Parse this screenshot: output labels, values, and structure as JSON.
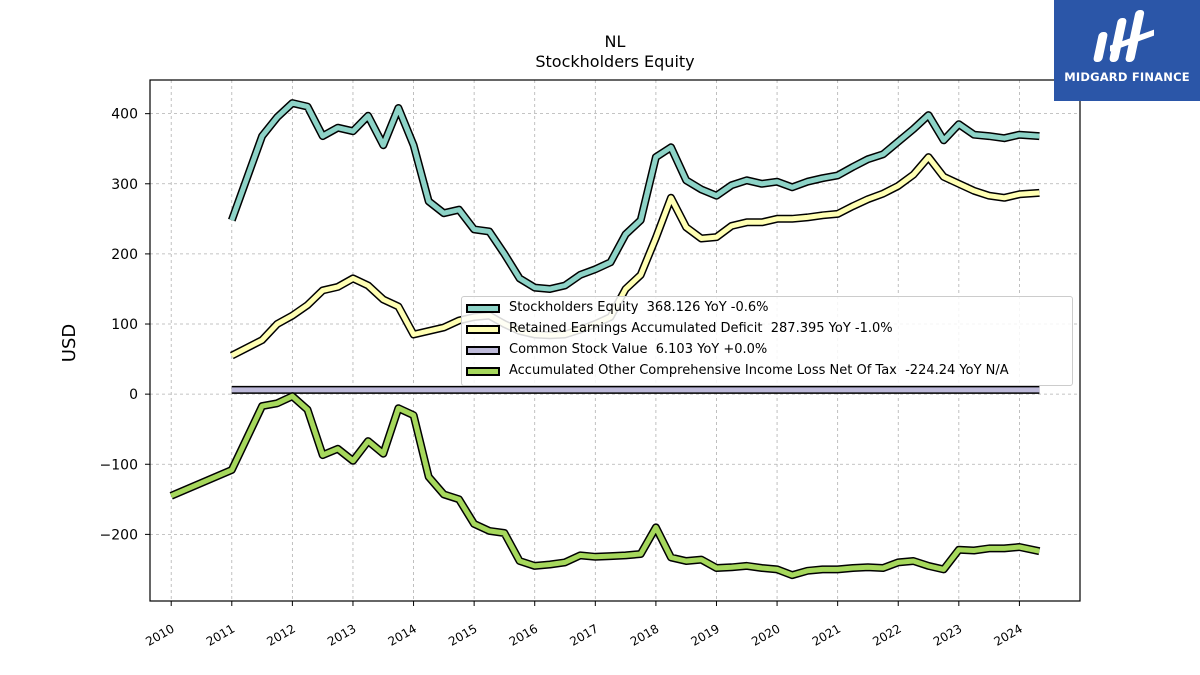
{
  "header": {
    "title": "NL",
    "subtitle": "Stockholders  Equity"
  },
  "brand": {
    "name": "MIDGARD FINANCE",
    "color": "#2b56a8"
  },
  "chart_data": {
    "type": "line",
    "title": "NL",
    "subtitle": "Stockholders  Equity",
    "xlabel": "",
    "ylabel": "USD",
    "xlim": [
      2009.65,
      2025.0
    ],
    "ylim": [
      -295,
      448
    ],
    "x_ticks": [
      "2010",
      "2011",
      "2012",
      "2013",
      "2014",
      "2015",
      "2016",
      "2017",
      "2018",
      "2019",
      "2020",
      "2021",
      "2022",
      "2023",
      "2024"
    ],
    "y_ticks": [
      -200,
      -100,
      0,
      100,
      200,
      300,
      400
    ],
    "y_tick_labels": [
      "−200",
      "−100",
      "0",
      "100",
      "200",
      "300",
      "400"
    ],
    "grid": true,
    "legend_position": "right-center",
    "series": [
      {
        "name": "Stockholders Equity",
        "legend": "Stockholders Equity  368.126 YoY -0.6%",
        "color": "#8dd3c7",
        "x": [
          2011.0,
          2011.5,
          2011.75,
          2012.0,
          2012.25,
          2012.5,
          2012.75,
          2013.0,
          2013.25,
          2013.5,
          2013.75,
          2014.0,
          2014.25,
          2014.5,
          2014.75,
          2015.0,
          2015.25,
          2015.5,
          2015.75,
          2016.0,
          2016.25,
          2016.5,
          2016.75,
          2017.0,
          2017.25,
          2017.5,
          2017.75,
          2018.0,
          2018.25,
          2018.5,
          2018.75,
          2019.0,
          2019.25,
          2019.5,
          2019.75,
          2020.0,
          2020.25,
          2020.5,
          2020.75,
          2021.0,
          2021.25,
          2021.5,
          2021.75,
          2022.0,
          2022.25,
          2022.5,
          2022.75,
          2023.0,
          2023.25,
          2023.5,
          2023.75,
          2024.0,
          2024.33
        ],
        "y": [
          248,
          368,
          395,
          415,
          410,
          368,
          380,
          375,
          397,
          355,
          408,
          355,
          275,
          258,
          263,
          235,
          232,
          200,
          165,
          152,
          150,
          155,
          170,
          178,
          188,
          228,
          248,
          338,
          352,
          305,
          292,
          283,
          298,
          305,
          300,
          303,
          295,
          303,
          308,
          312,
          324,
          335,
          342,
          360,
          378,
          398,
          362,
          385,
          370,
          368,
          365,
          370,
          368
        ]
      },
      {
        "name": "Retained Earnings Accumulated Deficit",
        "legend": "Retained Earnings Accumulated Deficit  287.395 YoY -1.0%",
        "color": "#ffffb3",
        "x": [
          2011.0,
          2011.5,
          2011.75,
          2012.0,
          2012.25,
          2012.5,
          2012.75,
          2013.0,
          2013.25,
          2013.5,
          2013.75,
          2014.0,
          2014.25,
          2014.5,
          2014.75,
          2015.0,
          2015.25,
          2015.5,
          2015.75,
          2016.0,
          2016.25,
          2016.5,
          2016.75,
          2017.0,
          2017.25,
          2017.5,
          2017.75,
          2018.0,
          2018.25,
          2018.5,
          2018.75,
          2019.0,
          2019.25,
          2019.5,
          2019.75,
          2020.0,
          2020.25,
          2020.5,
          2020.75,
          2021.0,
          2021.25,
          2021.5,
          2021.75,
          2022.0,
          2022.25,
          2022.5,
          2022.75,
          2023.0,
          2023.25,
          2023.5,
          2023.75,
          2024.0,
          2024.33
        ],
        "y": [
          55,
          77,
          100,
          112,
          127,
          148,
          153,
          165,
          155,
          135,
          125,
          85,
          90,
          95,
          105,
          110,
          112,
          100,
          90,
          85,
          84,
          85,
          92,
          100,
          110,
          150,
          170,
          223,
          280,
          238,
          222,
          224,
          240,
          245,
          245,
          250,
          250,
          252,
          255,
          257,
          268,
          278,
          286,
          297,
          313,
          338,
          310,
          300,
          290,
          283,
          280,
          285,
          287
        ]
      },
      {
        "name": "Common Stock Value",
        "legend": "Common Stock Value  6.103 YoY +0.0%",
        "color": "#bebada",
        "x": [
          2011.0,
          2024.33
        ],
        "y": [
          6.103,
          6.103
        ]
      },
      {
        "name": "Accumulated Other Comprehensive Income Loss Net Of Tax",
        "legend": "Accumulated Other Comprehensive Income Loss Net Of Tax  -224.24 YoY N/A",
        "color": "#a6d85c",
        "x": [
          2010.0,
          2011.0,
          2011.5,
          2011.75,
          2012.0,
          2012.25,
          2012.5,
          2012.75,
          2013.0,
          2013.25,
          2013.5,
          2013.75,
          2014.0,
          2014.25,
          2014.5,
          2014.75,
          2015.0,
          2015.25,
          2015.5,
          2015.75,
          2016.0,
          2016.25,
          2016.5,
          2016.75,
          2017.0,
          2017.25,
          2017.5,
          2017.75,
          2018.0,
          2018.25,
          2018.5,
          2018.75,
          2019.0,
          2019.25,
          2019.5,
          2019.75,
          2020.0,
          2020.25,
          2020.5,
          2020.75,
          2021.0,
          2021.25,
          2021.5,
          2021.75,
          2022.0,
          2022.25,
          2022.5,
          2022.75,
          2023.0,
          2023.25,
          2023.5,
          2023.75,
          2024.0,
          2024.33
        ],
        "y": [
          -145,
          -108,
          -17,
          -13,
          -3,
          -22,
          -87,
          -78,
          -95,
          -67,
          -85,
          -20,
          -30,
          -118,
          -143,
          -150,
          -185,
          -195,
          -198,
          -238,
          -245,
          -243,
          -240,
          -230,
          -232,
          -231,
          -230,
          -228,
          -190,
          -233,
          -238,
          -236,
          -248,
          -247,
          -245,
          -248,
          -250,
          -258,
          -252,
          -250,
          -250,
          -248,
          -247,
          -248,
          -240,
          -238,
          -245,
          -250,
          -222,
          -223,
          -220,
          -220,
          -218,
          -224
        ]
      }
    ]
  }
}
